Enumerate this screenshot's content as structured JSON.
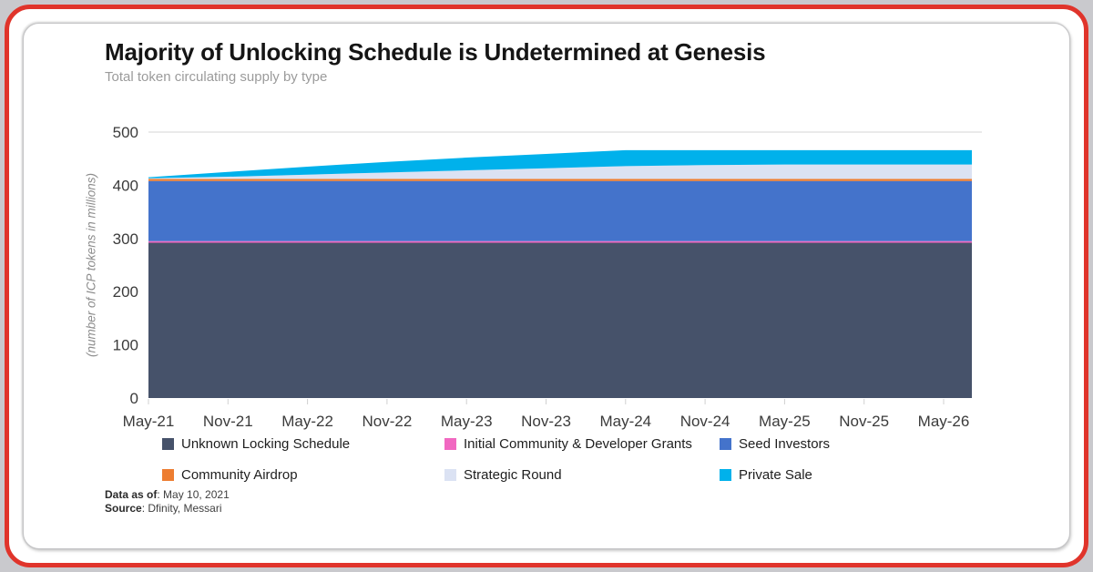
{
  "frame": {
    "page_bg": "#c9c9cd",
    "border_color": "#e0342b",
    "card_bg": "#ffffff"
  },
  "header": {
    "title": "Majority of Unlocking Schedule is Undetermined at Genesis",
    "subtitle": "Total token circulating supply by type"
  },
  "y_axis_title": "(number of ICP tokens in millions)",
  "footer": {
    "data_as_of_label": "Data as of",
    "data_as_of_value": ": May 10, 2021",
    "source_label": "Source",
    "source_value": ": Dfinity, Messari"
  },
  "chart_data": {
    "type": "area",
    "stacked": true,
    "title": "Majority of Unlocking Schedule is Undetermined at Genesis",
    "subtitle": "Total token circulating supply by type",
    "xlabel": "",
    "ylabel": "(number of ICP tokens in millions)",
    "ylim": [
      0,
      500
    ],
    "y_ticks": [
      0,
      100,
      200,
      300,
      400,
      500
    ],
    "grid": "top gridline at 500 only",
    "legend_position": "bottom",
    "categories": [
      "May-21",
      "Nov-21",
      "May-22",
      "Nov-22",
      "May-23",
      "Nov-23",
      "May-24",
      "Nov-24",
      "May-25",
      "Nov-25",
      "May-26"
    ],
    "series": [
      {
        "name": "Unknown Locking Schedule",
        "color": "#46526a",
        "values": [
          292,
          292,
          292,
          292,
          292,
          292,
          292,
          292,
          292,
          292,
          292
        ]
      },
      {
        "name": "Initial Community & Developer Grants",
        "color": "#f168c1",
        "values": [
          3,
          3,
          3,
          3,
          3,
          3,
          3,
          3,
          3,
          3,
          3
        ]
      },
      {
        "name": "Seed Investors",
        "color": "#4473cb",
        "values": [
          113,
          113,
          113,
          113,
          113,
          113,
          113,
          113,
          113,
          113,
          113
        ]
      },
      {
        "name": "Community Airdrop",
        "color": "#ed7d31",
        "values": [
          4,
          4,
          4,
          4,
          4,
          4,
          4,
          4,
          4,
          4,
          4
        ]
      },
      {
        "name": "Strategic Round",
        "color": "#dbe2f3",
        "values": [
          1,
          4,
          8,
          12,
          16,
          20,
          24,
          26,
          27,
          27,
          27
        ]
      },
      {
        "name": "Private Sale",
        "color": "#00b1eb",
        "values": [
          2,
          9,
          15,
          20,
          24,
          27,
          30,
          28,
          27,
          27,
          27
        ]
      }
    ]
  },
  "colors": {
    "gridline": "#e3e3e3",
    "tick": "#d0d0d0",
    "axis_text": "#3b3b3b"
  }
}
